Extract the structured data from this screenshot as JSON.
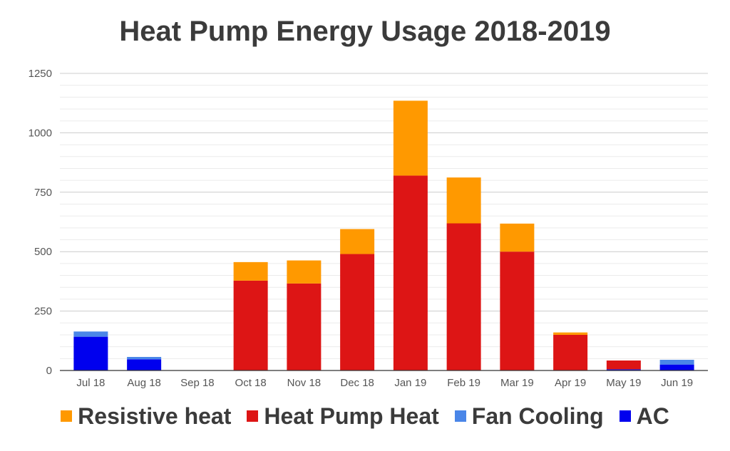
{
  "chart_data": {
    "type": "bar",
    "stacked": true,
    "title": "Heat Pump Energy Usage 2018-2019",
    "xlabel": "",
    "ylabel": "",
    "ylim": [
      0,
      1250
    ],
    "yticks": [
      "0",
      "250",
      "500",
      "750",
      "1000",
      "1250"
    ],
    "grid": true,
    "legend_position": "bottom",
    "categories": [
      "Jul 18",
      "Aug 18",
      "Sep 18",
      "Oct 18",
      "Nov 18",
      "Dec 18",
      "Jan 19",
      "Feb 19",
      "Mar 19",
      "Apr 19",
      "May 19",
      "Jun 19"
    ],
    "series": [
      {
        "name": "AC",
        "color": "#0000ee",
        "values": [
          142,
          47,
          0,
          0,
          0,
          0,
          0,
          0,
          0,
          0,
          5,
          25
        ]
      },
      {
        "name": "Fan Cooling",
        "color": "#4a86e8",
        "values": [
          22,
          10,
          0,
          0,
          0,
          0,
          0,
          0,
          0,
          0,
          0,
          20
        ]
      },
      {
        "name": "Heat Pump Heat",
        "color": "#dd1515",
        "values": [
          0,
          0,
          0,
          378,
          366,
          490,
          820,
          619,
          500,
          150,
          37,
          0
        ]
      },
      {
        "name": "Resistive heat",
        "color": "#ff9900",
        "values": [
          0,
          0,
          0,
          78,
          97,
          105,
          315,
          193,
          118,
          10,
          0,
          0
        ]
      }
    ],
    "legend_order": [
      "Resistive heat",
      "Heat Pump Heat",
      "Fan Cooling",
      "AC"
    ]
  }
}
